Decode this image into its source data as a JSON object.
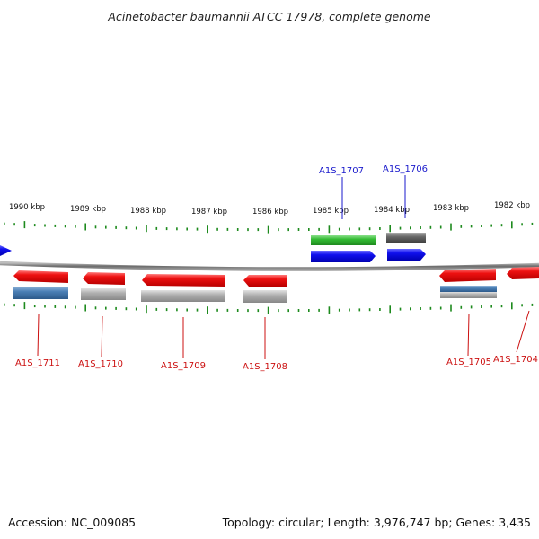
{
  "title": "Acinetobacter baumannii ATCC 17978, complete genome",
  "accession_label": "Accession: NC_009085",
  "topology_label": "Topology: circular; Length: 3,976,747 bp; Genes: 3,435",
  "scale_labels": [
    "1990 kbp",
    "1989 kbp",
    "1988 kbp",
    "1987 kbp",
    "1986 kbp",
    "1985 kbp",
    "1984 kbp",
    "1983 kbp",
    "1982 kbp"
  ],
  "gene_labels_top": [
    "A1S_1707",
    "A1S_1706"
  ],
  "gene_labels_bottom": [
    "A1S_1711",
    "A1S_1710",
    "A1S_1709",
    "A1S_1708",
    "A1S_1705",
    "A1S_1704"
  ],
  "colors": {
    "forward_gene": "#1010ee",
    "reverse_gene": "#ee1111",
    "rna_gene": "#33bb33",
    "track_blue": "#4a7fb5",
    "track_gray": "#aaaaaa",
    "track_dark": "#666666",
    "tick": "#1d8a1d",
    "backbone": "#777777"
  }
}
